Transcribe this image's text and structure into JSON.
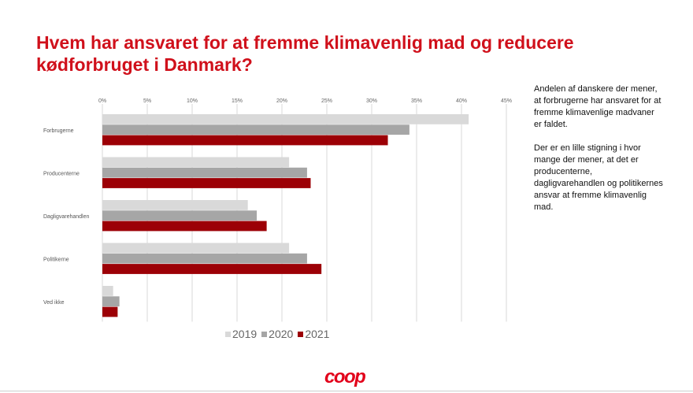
{
  "slide": {
    "title": "Hvem har ansvaret for at fremme klimavenlig mad og reducere kødforbruget i Danmark?",
    "side_text": [
      "Andelen af danskere der mener, at forbrugerne har ansvaret for at fremme klimavenlige madvaner er faldet.",
      "Der er en lille stigning i hvor mange der mener, at det er producenterne, dagligvarehandlen og politikernes ansvar at fremme klimavenlig mad."
    ],
    "logo": "coop"
  },
  "colors": {
    "title": "#d0101b",
    "s2019": "#d9d9d9",
    "s2020": "#a6a6a6",
    "s2021": "#9c0006",
    "logo": "#e2001a"
  },
  "chart_data": {
    "type": "bar",
    "orientation": "horizontal",
    "categories": [
      "Forbrugerne",
      "Producenterne",
      "Dagligvarehandlen",
      "Politikerne",
      "Ved ikke"
    ],
    "series": [
      {
        "name": "2019",
        "color": "#d9d9d9",
        "values": [
          40.8,
          20.8,
          16.2,
          20.8,
          1.2
        ]
      },
      {
        "name": "2020",
        "color": "#a6a6a6",
        "values": [
          34.2,
          22.8,
          17.2,
          22.8,
          1.9
        ]
      },
      {
        "name": "2021",
        "color": "#9c0006",
        "values": [
          31.8,
          23.2,
          18.3,
          24.4,
          1.7
        ]
      }
    ],
    "xlim": [
      0,
      45
    ],
    "xticks": [
      "0%",
      "5%",
      "10%",
      "15%",
      "20%",
      "25%",
      "30%",
      "35%",
      "40%",
      "45%"
    ],
    "grid": true,
    "legend_position": "bottom"
  }
}
